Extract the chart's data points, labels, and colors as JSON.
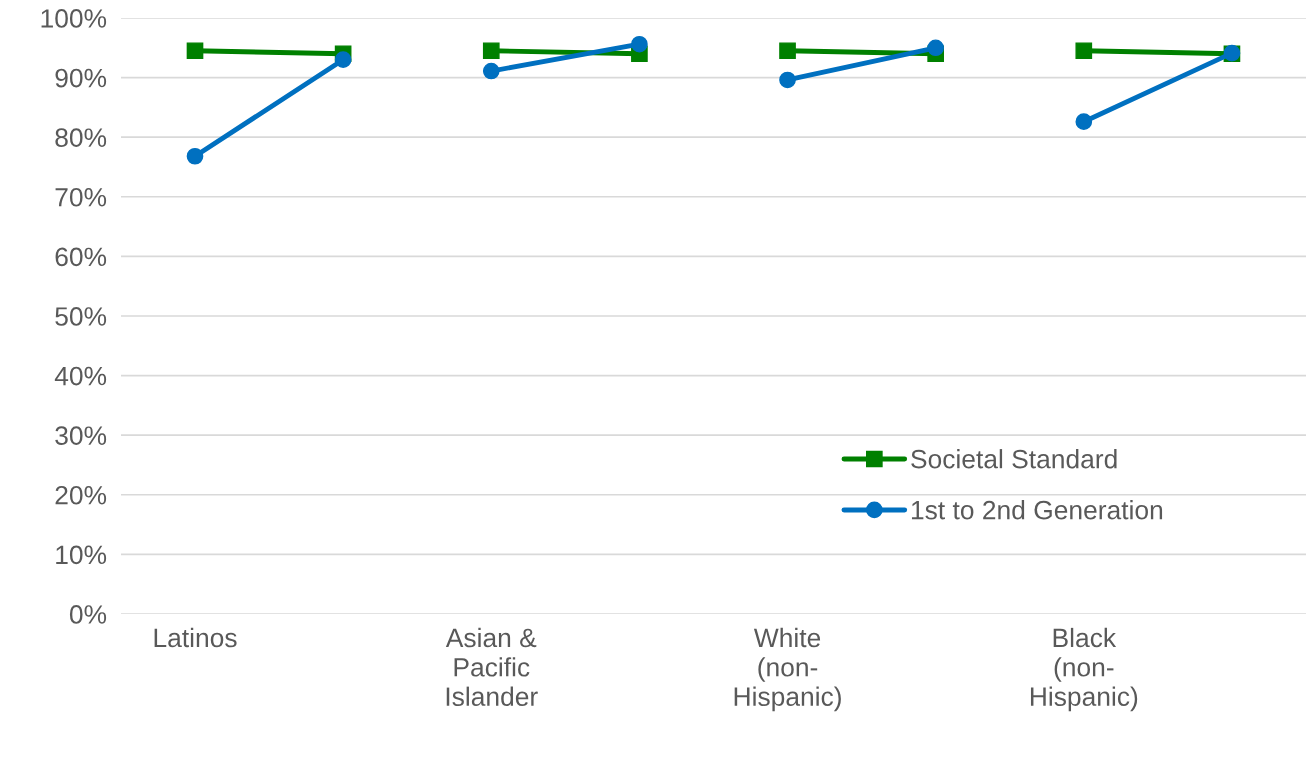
{
  "chart_data": {
    "type": "line",
    "categories": [
      "Latinos",
      null,
      "Asian &\nPacific\nIslander",
      null,
      "White\n(non-\nHispanic)",
      null,
      "Black\n(non-\nHispanic)",
      null
    ],
    "series": [
      {
        "name": "Societal Standard",
        "color": "#008000",
        "marker": "square",
        "values": [
          94.5,
          94.0,
          null,
          null,
          null,
          null,
          null,
          null
        ]
      },
      {
        "name": "1st to 2nd Generation",
        "color": "#0070c0",
        "marker": "circle",
        "values": [
          76.8,
          93.0,
          null,
          null,
          null,
          null,
          null,
          null
        ]
      },
      {
        "color": "#008000",
        "marker": "square",
        "values": [
          null,
          null,
          94.5,
          94.0,
          null,
          null,
          null,
          null
        ]
      },
      {
        "color": "#0070c0",
        "marker": "circle",
        "values": [
          null,
          null,
          91.1,
          95.6,
          null,
          null,
          null,
          null
        ]
      },
      {
        "color": "#008000",
        "marker": "square",
        "values": [
          null,
          null,
          null,
          null,
          94.5,
          94.0,
          null,
          null
        ]
      },
      {
        "color": "#0070c0",
        "marker": "circle",
        "values": [
          null,
          null,
          null,
          null,
          89.6,
          95.0,
          null,
          null
        ]
      },
      {
        "color": "#008000",
        "marker": "square",
        "values": [
          null,
          null,
          null,
          null,
          null,
          null,
          94.5,
          94.0
        ]
      },
      {
        "color": "#0070c0",
        "marker": "circle",
        "values": [
          null,
          null,
          null,
          null,
          null,
          null,
          82.6,
          94.1
        ]
      }
    ],
    "ylim": [
      0,
      100
    ],
    "yticks": [
      {
        "value": 0,
        "label": "0%"
      },
      {
        "value": 10,
        "label": "10%"
      },
      {
        "value": 20,
        "label": "20%"
      },
      {
        "value": 30,
        "label": "30%"
      },
      {
        "value": 40,
        "label": "40%"
      },
      {
        "value": 50,
        "label": "50%"
      },
      {
        "value": 60,
        "label": "60%"
      },
      {
        "value": 70,
        "label": "70%"
      },
      {
        "value": 80,
        "label": "80%"
      },
      {
        "value": 90,
        "label": "90%"
      },
      {
        "value": 100,
        "label": "100%"
      }
    ],
    "grid": "y",
    "legend": "bottom right"
  }
}
